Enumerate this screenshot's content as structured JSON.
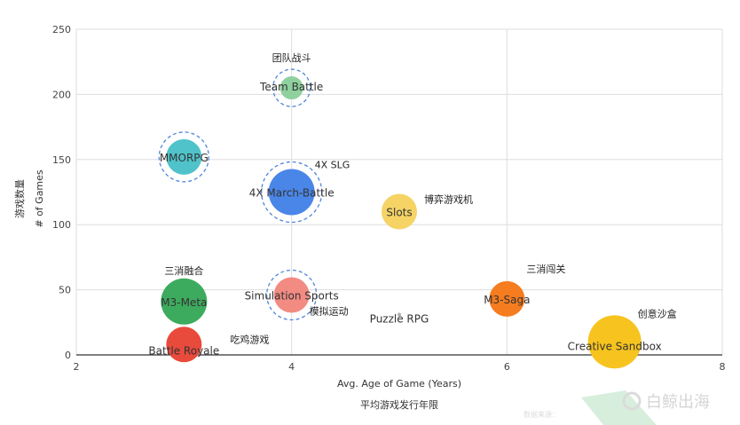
{
  "chart_data": {
    "type": "scatter",
    "xlabel": "Avg. Age of Game (Years)",
    "xlabel_cn": "平均游戏发行年限",
    "ylabel": "# of Games",
    "ylabel_cn": "游戏数量",
    "xlim": [
      2,
      8
    ],
    "ylim": [
      0,
      250
    ],
    "x_ticks": [
      "2",
      "4",
      "6",
      "8"
    ],
    "y_ticks": [
      "0",
      "50",
      "100",
      "150",
      "200",
      "250"
    ],
    "grid": true,
    "bubbles": [
      {
        "label": "Team Battle",
        "label_cn": "团队战斗",
        "x": 4.0,
        "y": 205,
        "color": "#8fd19e",
        "size": "small",
        "highlight": true
      },
      {
        "label": "MMORPG",
        "label_cn": "",
        "x": 3.0,
        "y": 152,
        "color": "#4fc3c9",
        "size": "medium",
        "highlight": true
      },
      {
        "label": "4X March-Battle",
        "label_cn": "4X SLG",
        "x": 4.0,
        "y": 125,
        "color": "#4a86e8",
        "size": "large",
        "highlight": true
      },
      {
        "label": "Slots",
        "label_cn": "博弈游戏机",
        "x": 5.0,
        "y": 110,
        "color": "#f6d365",
        "size": "medium",
        "highlight": false
      },
      {
        "label": "M3-Meta",
        "label_cn": "三消融合",
        "x": 3.0,
        "y": 41,
        "color": "#3dab5e",
        "size": "large",
        "highlight": false
      },
      {
        "label": "Simulation Sports",
        "label_cn": "模拟运动",
        "x": 4.0,
        "y": 46,
        "color": "#f28b82",
        "size": "medium",
        "highlight": true
      },
      {
        "label": "M3-Saga",
        "label_cn": "三消闯关",
        "x": 6.0,
        "y": 43,
        "color": "#f57c1f",
        "size": "medium",
        "highlight": false
      },
      {
        "label": "Puzzle RPG",
        "label_cn": "",
        "x": 5.0,
        "y": 31,
        "color": "#b0b0b0",
        "size": "tiny",
        "highlight": false
      },
      {
        "label": "Battle Royale",
        "label_cn": "吃鸡游戏",
        "x": 3.0,
        "y": 8,
        "color": "#e84b3c",
        "size": "medium",
        "highlight": false
      },
      {
        "label": "Creative Sandbox",
        "label_cn": "创意沙盒",
        "x": 7.0,
        "y": 10,
        "color": "#f7c31e",
        "size": "xlarge",
        "highlight": false
      }
    ]
  },
  "watermark": {
    "brand": "白鲸出海",
    "note": "数据来源："
  }
}
